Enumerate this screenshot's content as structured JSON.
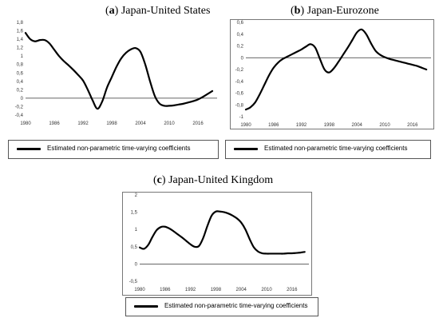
{
  "panels": [
    {
      "tag": "a",
      "title": "Japan-United States"
    },
    {
      "tag": "b",
      "title": "Japan-Eurozone"
    },
    {
      "tag": "c",
      "title": "Japan-United Kingdom"
    }
  ],
  "legend_label": "Estimated non-parametric time-varying coefficients",
  "chart_data": [
    {
      "type": "line",
      "title": "Japan-United States",
      "ylim": [
        -0.4,
        1.8
      ],
      "yticks": [
        "1,8",
        "1,6",
        "1,4",
        "1,2",
        "1",
        "0,8",
        "0,6",
        "0,4",
        "0,2",
        "0",
        "-0,2",
        "-0,4"
      ],
      "xlim": [
        1980,
        2020
      ],
      "xticks": [
        "1980",
        "1986",
        "1992",
        "1998",
        "2004",
        "2010",
        "2016"
      ],
      "series": [
        {
          "color": "#000000",
          "x": [
            1980,
            1981,
            1982,
            1983,
            1984,
            1985,
            1986,
            1987,
            1988,
            1989,
            1990,
            1991,
            1992,
            1993,
            1994,
            1995,
            1996,
            1997,
            1998,
            1999,
            2000,
            2001,
            2002,
            2003,
            2004,
            2005,
            2006,
            2007,
            2008,
            2009,
            2010,
            2011,
            2012,
            2013,
            2014,
            2015,
            2016,
            2017,
            2018,
            2019
          ],
          "y": [
            1.55,
            1.4,
            1.35,
            1.38,
            1.38,
            1.3,
            1.15,
            1.0,
            0.88,
            0.78,
            0.67,
            0.55,
            0.42,
            0.2,
            -0.05,
            -0.25,
            -0.08,
            0.25,
            0.5,
            0.75,
            0.95,
            1.08,
            1.16,
            1.19,
            1.1,
            0.8,
            0.4,
            0.05,
            -0.13,
            -0.18,
            -0.18,
            -0.17,
            -0.15,
            -0.13,
            -0.1,
            -0.07,
            -0.03,
            0.03,
            0.1,
            0.17
          ]
        }
      ]
    },
    {
      "type": "line",
      "title": "Japan-Eurozone",
      "ylim": [
        -1,
        0.6
      ],
      "yticks": [
        "0,6",
        "0,4",
        "0,2",
        "0",
        "-0,2",
        "-0,4",
        "-0,6",
        "-0,8",
        "-1"
      ],
      "xlim": [
        1980,
        2020
      ],
      "xticks": [
        "1980",
        "1986",
        "1992",
        "1998",
        "2004",
        "2010",
        "2016"
      ],
      "series": [
        {
          "color": "#000000",
          "x": [
            1980,
            1981,
            1982,
            1983,
            1984,
            1985,
            1986,
            1987,
            1988,
            1989,
            1990,
            1991,
            1992,
            1993,
            1994,
            1995,
            1996,
            1997,
            1998,
            1999,
            2000,
            2001,
            2002,
            2003,
            2004,
            2005,
            2006,
            2007,
            2008,
            2009,
            2010,
            2011,
            2012,
            2013,
            2014,
            2015,
            2016,
            2017,
            2018,
            2019
          ],
          "y": [
            -0.88,
            -0.84,
            -0.76,
            -0.62,
            -0.46,
            -0.3,
            -0.17,
            -0.08,
            -0.02,
            0.02,
            0.06,
            0.1,
            0.14,
            0.19,
            0.23,
            0.17,
            -0.02,
            -0.2,
            -0.25,
            -0.18,
            -0.07,
            0.05,
            0.17,
            0.3,
            0.43,
            0.48,
            0.4,
            0.25,
            0.12,
            0.05,
            0.01,
            -0.02,
            -0.04,
            -0.06,
            -0.08,
            -0.1,
            -0.12,
            -0.14,
            -0.17,
            -0.2
          ]
        }
      ]
    },
    {
      "type": "line",
      "title": "Japan-United Kingdom",
      "ylim": [
        -0.5,
        2
      ],
      "yticks": [
        "2",
        "1,5",
        "1",
        "0,5",
        "0",
        "-0,5"
      ],
      "xlim": [
        1980,
        2020
      ],
      "xticks": [
        "1980",
        "1986",
        "1992",
        "1998",
        "2004",
        "2010",
        "2016"
      ],
      "series": [
        {
          "color": "#000000",
          "x": [
            1980,
            1981,
            1982,
            1983,
            1984,
            1985,
            1986,
            1987,
            1988,
            1989,
            1990,
            1991,
            1992,
            1993,
            1994,
            1995,
            1996,
            1997,
            1998,
            1999,
            2000,
            2001,
            2002,
            2003,
            2004,
            2005,
            2006,
            2007,
            2008,
            2009,
            2010,
            2011,
            2012,
            2013,
            2014,
            2015,
            2016,
            2017,
            2018,
            2019
          ],
          "y": [
            0.48,
            0.44,
            0.55,
            0.78,
            0.98,
            1.07,
            1.08,
            1.03,
            0.95,
            0.86,
            0.77,
            0.67,
            0.57,
            0.5,
            0.52,
            0.75,
            1.1,
            1.4,
            1.52,
            1.52,
            1.5,
            1.46,
            1.4,
            1.32,
            1.2,
            1.0,
            0.72,
            0.48,
            0.36,
            0.31,
            0.3,
            0.3,
            0.3,
            0.3,
            0.3,
            0.31,
            0.31,
            0.32,
            0.33,
            0.35
          ]
        }
      ]
    }
  ]
}
